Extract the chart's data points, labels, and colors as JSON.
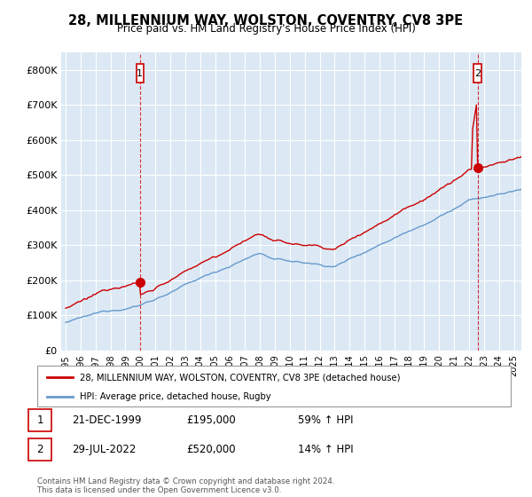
{
  "title": "28, MILLENNIUM WAY, WOLSTON, COVENTRY, CV8 3PE",
  "subtitle": "Price paid vs. HM Land Registry's House Price Index (HPI)",
  "legend_line1": "28, MILLENNIUM WAY, WOLSTON, COVENTRY, CV8 3PE (detached house)",
  "legend_line2": "HPI: Average price, detached house, Rugby",
  "annotation1_label": "1",
  "annotation1_date": "21-DEC-1999",
  "annotation1_price": "£195,000",
  "annotation1_hpi": "59% ↑ HPI",
  "annotation2_label": "2",
  "annotation2_date": "29-JUL-2022",
  "annotation2_price": "£520,000",
  "annotation2_hpi": "14% ↑ HPI",
  "footer": "Contains HM Land Registry data © Crown copyright and database right 2024.\nThis data is licensed under the Open Government Licence v3.0.",
  "red_color": "#cc0000",
  "blue_color": "#6699cc",
  "plot_bg_color": "#dce9f5",
  "ylim": [
    0,
    850000
  ],
  "yticks": [
    0,
    100000,
    200000,
    300000,
    400000,
    500000,
    600000,
    700000,
    800000
  ],
  "ytick_labels": [
    "£0",
    "£100K",
    "£200K",
    "£300K",
    "£400K",
    "£500K",
    "£600K",
    "£700K",
    "£800K"
  ],
  "xtick_years": [
    1995,
    1996,
    1997,
    1998,
    1999,
    2000,
    2001,
    2002,
    2003,
    2004,
    2005,
    2006,
    2007,
    2008,
    2009,
    2010,
    2011,
    2012,
    2013,
    2014,
    2015,
    2016,
    2017,
    2018,
    2019,
    2020,
    2021,
    2022,
    2023,
    2024,
    2025
  ],
  "sale1_x": 1999.97,
  "sale1_y": 195000,
  "sale2_x": 2022.57,
  "sale2_y": 520000,
  "background_color": "#ffffff",
  "grid_color": "#ffffff"
}
